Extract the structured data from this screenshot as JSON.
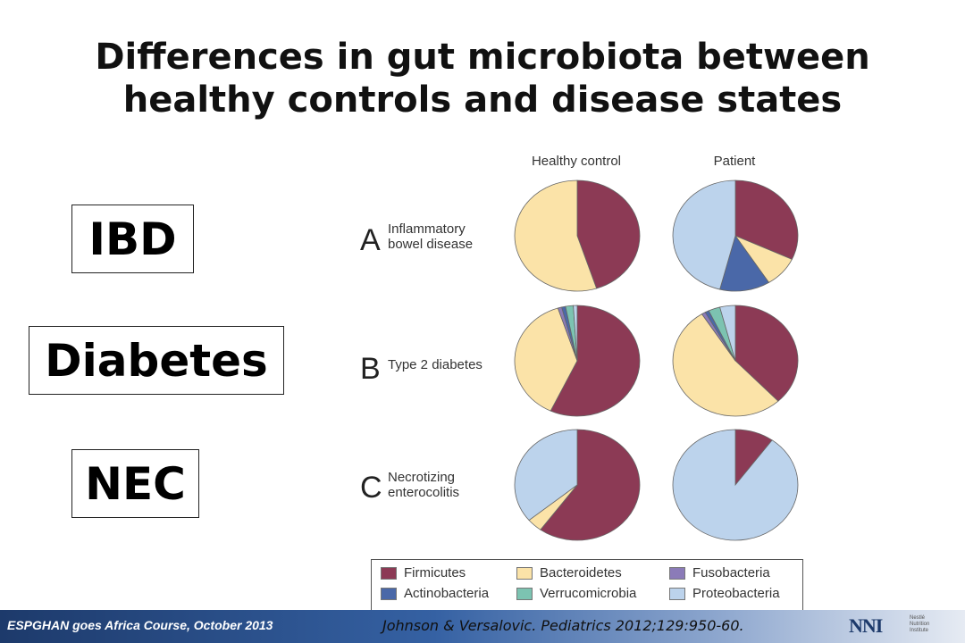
{
  "slide": {
    "title": "Differences in gut microbiota between healthy controls and disease states"
  },
  "boxes": {
    "ibd": "IBD",
    "diabetes": "Diabetes",
    "nec": "NEC"
  },
  "footer": {
    "course": "ESPGHAN goes Africa Course, October 2013",
    "citation": "Johnson & Versalovic. Pediatrics 2012;129:950-60.",
    "logo_text": "Nestlé\nNutrition\nInstitute"
  },
  "chart_data": {
    "type": "pie",
    "columns": [
      "Healthy control",
      "Patient"
    ],
    "rows": [
      {
        "letter": "A",
        "label": "Inflammatory\nbowel disease"
      },
      {
        "letter": "B",
        "label": "Type 2 diabetes"
      },
      {
        "letter": "C",
        "label": "Necrotizing\nenterocolitis"
      }
    ],
    "legend": [
      {
        "name": "Firmicutes",
        "color": "#8c3a55"
      },
      {
        "name": "Bacteroidetes",
        "color": "#fbe3a8"
      },
      {
        "name": "Fusobacteria",
        "color": "#8b7bb8"
      },
      {
        "name": "Actinobacteria",
        "color": "#4a68a8"
      },
      {
        "name": "Verrucomicrobia",
        "color": "#7cc3b1"
      },
      {
        "name": "Proteobacteria",
        "color": "#bcd3ec"
      }
    ],
    "pies": [
      {
        "row": "A",
        "column": "Healthy control",
        "slices": [
          {
            "name": "Firmicutes",
            "value": 45
          },
          {
            "name": "Bacteroidetes",
            "value": 55
          }
        ]
      },
      {
        "row": "A",
        "column": "Patient",
        "slices": [
          {
            "name": "Firmicutes",
            "value": 32
          },
          {
            "name": "Bacteroidetes",
            "value": 9
          },
          {
            "name": "Actinobacteria",
            "value": 13
          },
          {
            "name": "Proteobacteria",
            "value": 46
          }
        ]
      },
      {
        "row": "B",
        "column": "Healthy control",
        "slices": [
          {
            "name": "Firmicutes",
            "value": 57
          },
          {
            "name": "Bacteroidetes",
            "value": 38
          },
          {
            "name": "Fusobacteria",
            "value": 1
          },
          {
            "name": "Actinobacteria",
            "value": 1
          },
          {
            "name": "Verrucomicrobia",
            "value": 2
          },
          {
            "name": "Proteobacteria",
            "value": 1
          }
        ]
      },
      {
        "row": "B",
        "column": "Patient",
        "slices": [
          {
            "name": "Firmicutes",
            "value": 38
          },
          {
            "name": "Bacteroidetes",
            "value": 53
          },
          {
            "name": "Fusobacteria",
            "value": 1
          },
          {
            "name": "Actinobacteria",
            "value": 1
          },
          {
            "name": "Verrucomicrobia",
            "value": 3
          },
          {
            "name": "Proteobacteria",
            "value": 4
          }
        ]
      },
      {
        "row": "C",
        "column": "Healthy control",
        "slices": [
          {
            "name": "Firmicutes",
            "value": 60
          },
          {
            "name": "Bacteroidetes",
            "value": 4
          },
          {
            "name": "Proteobacteria",
            "value": 36
          }
        ]
      },
      {
        "row": "C",
        "column": "Patient",
        "slices": [
          {
            "name": "Firmicutes",
            "value": 10
          },
          {
            "name": "Proteobacteria",
            "value": 90
          }
        ]
      }
    ]
  }
}
